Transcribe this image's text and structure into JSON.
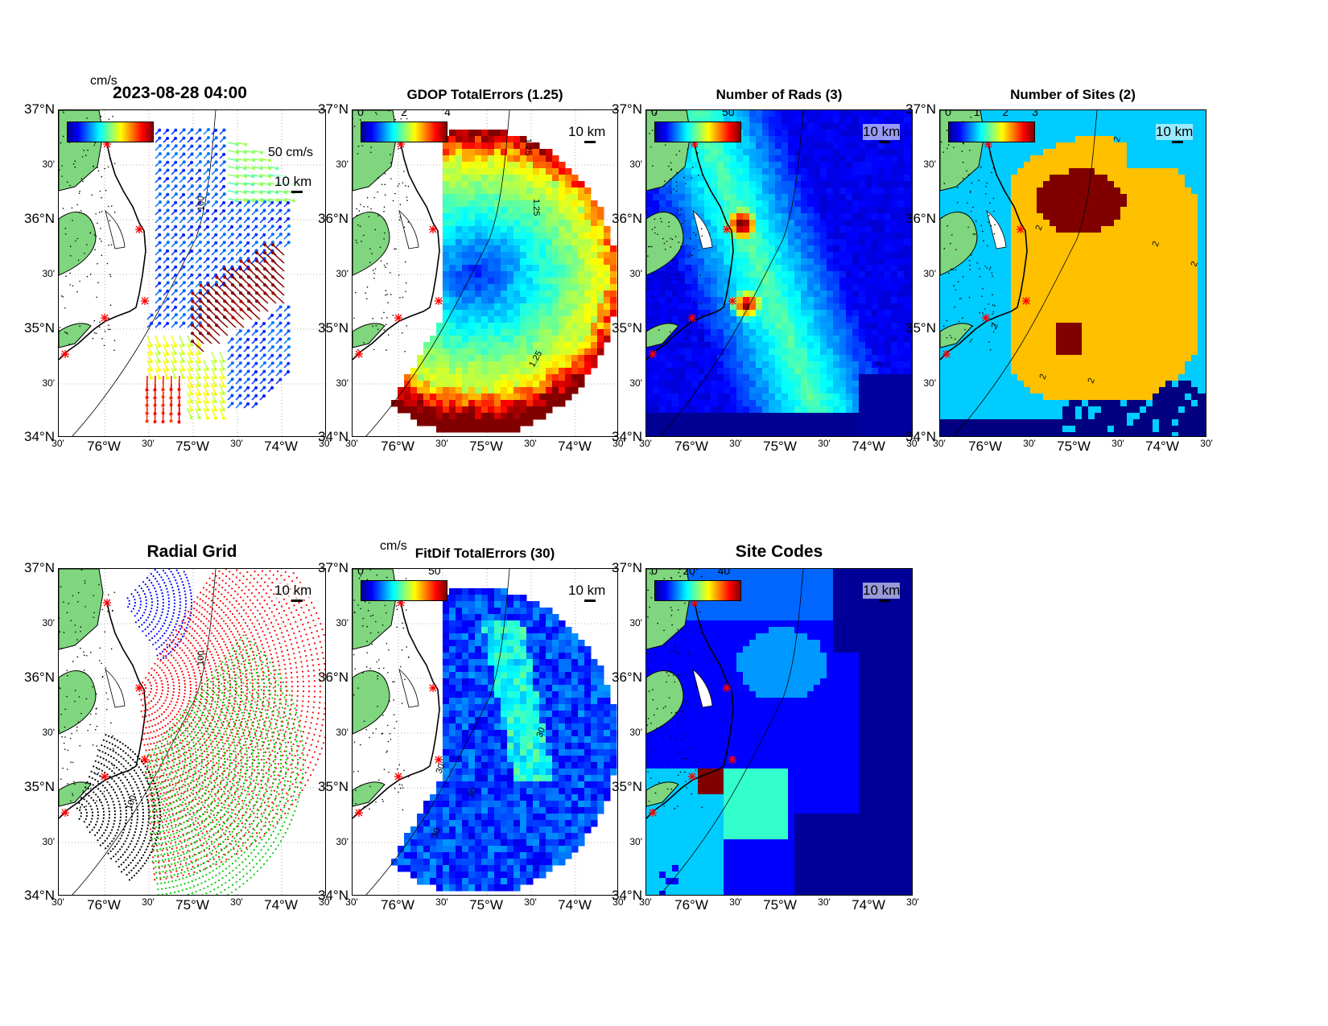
{
  "axes": {
    "lat_labels": [
      "37°N",
      "30'",
      "36°N",
      "30'",
      "35°N",
      "30'",
      "34°N"
    ],
    "lon_labels": [
      "30'",
      "76°W",
      "30'",
      "75°W",
      "30'",
      "74°W",
      "30'"
    ]
  },
  "scale_label": "10 km",
  "panels": [
    {
      "id": "currents",
      "title": "2023-08-28 04:00",
      "unit": "cm/s",
      "arrow_key": "50 cm/s",
      "contour": "100",
      "colorbar_ticks": []
    },
    {
      "id": "gdop",
      "title": "GDOP TotalErrors (1.25)",
      "colorbar_ticks": [
        "0",
        "2",
        "4"
      ],
      "contours": [
        "1.25",
        "1.25",
        "1.25"
      ]
    },
    {
      "id": "nrads",
      "title": "Number of Rads (3)",
      "colorbar_ticks": [
        "0",
        "50"
      ],
      "contours": [
        "3"
      ]
    },
    {
      "id": "nsites",
      "title": "Number of Sites (2)",
      "colorbar_ticks": [
        "0",
        "1",
        "2",
        "3"
      ],
      "contours": [
        "2",
        "2",
        "2",
        "2",
        "2",
        "2",
        "2"
      ]
    },
    {
      "id": "radial",
      "title": "Radial Grid",
      "contours": [
        "100",
        "100"
      ]
    },
    {
      "id": "fitdif",
      "title": "FitDif TotalErrors (30)",
      "unit": "cm/s",
      "colorbar_ticks": [
        "0",
        "50"
      ],
      "contours": [
        "30",
        "30",
        "30",
        "30"
      ]
    },
    {
      "id": "sitecodes",
      "title": "Site Codes",
      "colorbar_ticks": [
        "0",
        "20",
        "40"
      ]
    }
  ],
  "colors": {
    "land": "#7fd67f",
    "site_marker": "#ff0000",
    "radial_sites": [
      "#0000ff",
      "#ff0000",
      "#00cc00",
      "#000000"
    ]
  }
}
